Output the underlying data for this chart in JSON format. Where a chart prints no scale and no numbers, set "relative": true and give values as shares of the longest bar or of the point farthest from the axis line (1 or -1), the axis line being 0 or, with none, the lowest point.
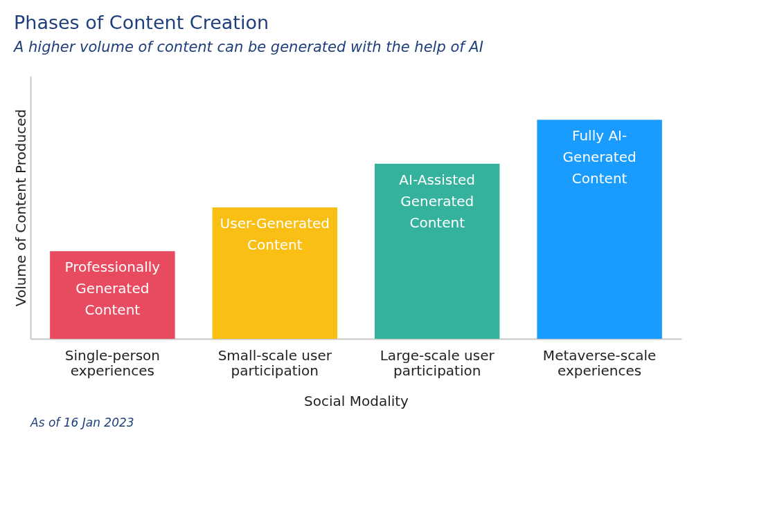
{
  "chart_data": {
    "type": "bar",
    "title": "Phases of Content Creation",
    "subtitle": "A higher volume of content can be generated with the help of AI",
    "xlabel": "Social Modality",
    "ylabel": "Volume of Content Produced",
    "categories": [
      "Single-person\nexperiences",
      "Small-scale user\nparticipation",
      "Large-scale user\nparticipation",
      "Metaverse-scale\nexperiences"
    ],
    "values": [
      0.4,
      0.6,
      0.8,
      1
    ],
    "colors": [
      "#e84a5f",
      "#f9bf15",
      "#35b29e",
      "#1a9cff"
    ],
    "relative": true,
    "grid": false,
    "annotations": [
      {
        "text": "Professionally\nGenerated\nContent",
        "x": "Single-person\nexperiences",
        "y": 0.4
      },
      {
        "text": "User-Generated\nContent",
        "x": "Small-scale user\nparticipation",
        "y": 0.6
      },
      {
        "text": "AI-Assisted\nGenerated\nContent",
        "x": "Large-scale user\nparticipation",
        "y": 0.8
      },
      {
        "text": "Fully AI-\nGenerated\nContent",
        "x": "Metaverse-scale\nexperiences",
        "y": 1
      },
      "As of 16 Jan 2023"
    ]
  }
}
